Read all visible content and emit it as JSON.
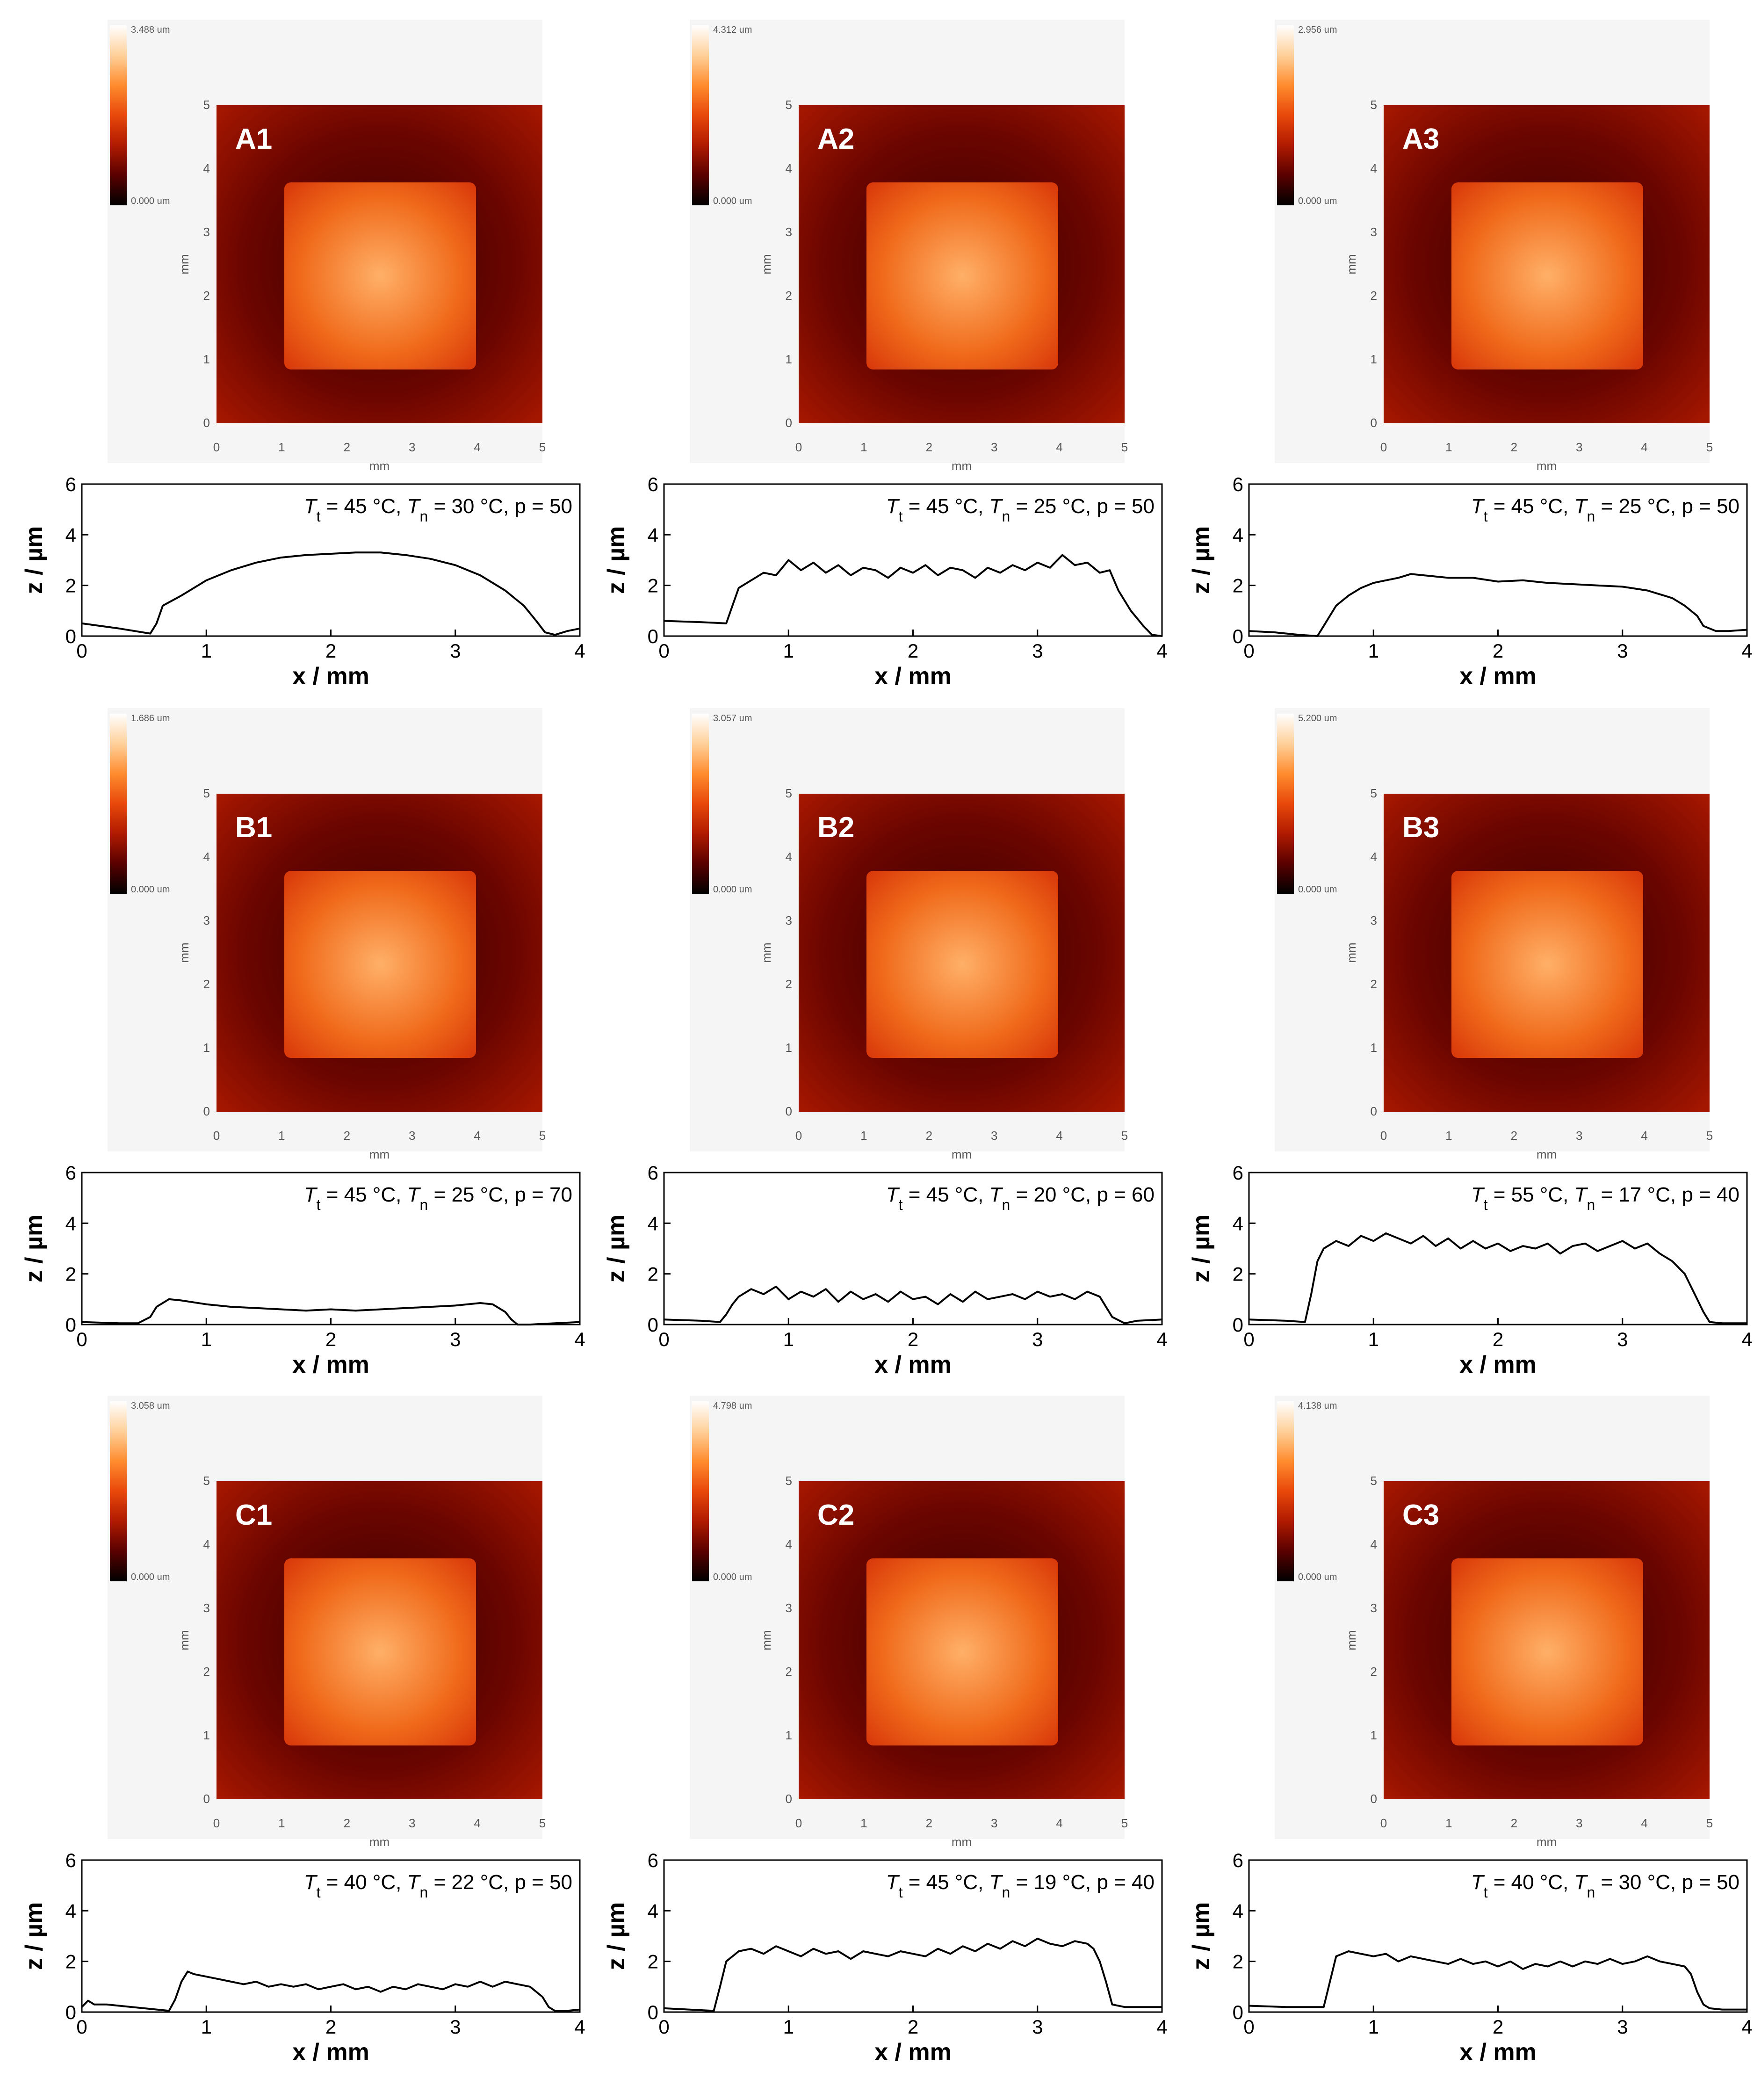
{
  "figure": {
    "map_axis_unit": "mm",
    "map_ticks": [
      "0",
      "1",
      "2",
      "3",
      "4",
      "5"
    ],
    "profile_xlabel": "x / mm",
    "profile_ylabel": "z / µm",
    "profile_xticks": [
      "0",
      "1",
      "2",
      "3",
      "4"
    ],
    "profile_yticks": [
      "0",
      "2",
      "4",
      "6"
    ],
    "colorbar_min": "0.000 um",
    "colormap": [
      "#000000",
      "#5a0000",
      "#b01a00",
      "#e8480a",
      "#ff8c2e",
      "#ffd09a",
      "#ffffff"
    ]
  },
  "panels": [
    {
      "id": "A1",
      "scale_max": "3.488 um",
      "caption_parts": [
        "T",
        "t",
        " = 45 °C, ",
        "T",
        "n",
        " = 30 °C, p = 50"
      ]
    },
    {
      "id": "A2",
      "scale_max": "4.312 um",
      "caption_parts": [
        "T",
        "t",
        " = 45 °C, ",
        "T",
        "n",
        " = 25 °C, p = 50"
      ]
    },
    {
      "id": "A3",
      "scale_max": "2.956 um",
      "caption_parts": [
        "T",
        "t",
        " = 45 °C, ",
        "T",
        "n",
        " = 25 °C, p = 50"
      ]
    },
    {
      "id": "B1",
      "scale_max": "1.686 um",
      "caption_parts": [
        "T",
        "t",
        " = 45 °C, ",
        "T",
        "n",
        " = 25 °C, p = 70"
      ]
    },
    {
      "id": "B2",
      "scale_max": "3.057 um",
      "caption_parts": [
        "T",
        "t",
        " = 45 °C, ",
        "T",
        "n",
        " = 20 °C, p = 60"
      ]
    },
    {
      "id": "B3",
      "scale_max": "5.200 um",
      "caption_parts": [
        "T",
        "t",
        " = 55 °C, ",
        "T",
        "n",
        " = 17 °C, p = 40"
      ]
    },
    {
      "id": "C1",
      "scale_max": "3.058 um",
      "caption_parts": [
        "T",
        "t",
        " = 40 °C, ",
        "T",
        "n",
        " = 22 °C, p = 50"
      ]
    },
    {
      "id": "C2",
      "scale_max": "4.798 um",
      "caption_parts": [
        "T",
        "t",
        " = 45 °C, ",
        "T",
        "n",
        " = 19 °C, p = 40"
      ]
    },
    {
      "id": "C3",
      "scale_max": "4.138 um",
      "caption_parts": [
        "T",
        "t",
        " = 40 °C, ",
        "T",
        "n",
        " = 30 °C, p = 50"
      ]
    }
  ],
  "chart_data": [
    {
      "type": "line",
      "panel": "A1",
      "xlabel": "x / mm",
      "ylabel": "z / µm",
      "xlim": [
        0,
        4
      ],
      "ylim": [
        0,
        6
      ],
      "grid": false,
      "x": [
        0,
        0.3,
        0.55,
        0.6,
        0.65,
        0.8,
        1.0,
        1.2,
        1.4,
        1.6,
        1.8,
        2.0,
        2.2,
        2.4,
        2.6,
        2.8,
        3.0,
        3.2,
        3.4,
        3.55,
        3.65,
        3.72,
        3.8,
        3.9,
        4.0
      ],
      "y": [
        0.5,
        0.3,
        0.1,
        0.5,
        1.2,
        1.6,
        2.2,
        2.6,
        2.9,
        3.1,
        3.2,
        3.25,
        3.3,
        3.3,
        3.2,
        3.05,
        2.8,
        2.4,
        1.8,
        1.2,
        0.6,
        0.15,
        0.05,
        0.2,
        0.3
      ]
    },
    {
      "type": "line",
      "panel": "A2",
      "xlabel": "x / mm",
      "ylabel": "z / µm",
      "xlim": [
        0,
        4
      ],
      "ylim": [
        0,
        6
      ],
      "grid": false,
      "x": [
        0,
        0.3,
        0.5,
        0.55,
        0.6,
        0.7,
        0.8,
        0.9,
        1.0,
        1.1,
        1.2,
        1.3,
        1.4,
        1.5,
        1.6,
        1.7,
        1.8,
        1.9,
        2.0,
        2.1,
        2.2,
        2.3,
        2.4,
        2.5,
        2.6,
        2.7,
        2.8,
        2.9,
        3.0,
        3.1,
        3.2,
        3.3,
        3.4,
        3.5,
        3.58,
        3.65,
        3.75,
        3.85,
        3.92,
        4.0
      ],
      "y": [
        0.6,
        0.55,
        0.5,
        1.2,
        1.9,
        2.2,
        2.5,
        2.4,
        3.0,
        2.6,
        2.9,
        2.5,
        2.8,
        2.4,
        2.7,
        2.6,
        2.3,
        2.7,
        2.5,
        2.8,
        2.4,
        2.7,
        2.6,
        2.3,
        2.7,
        2.5,
        2.8,
        2.6,
        2.9,
        2.7,
        3.2,
        2.8,
        2.9,
        2.5,
        2.6,
        1.8,
        1.0,
        0.4,
        0.05,
        0.0
      ]
    },
    {
      "type": "line",
      "panel": "A3",
      "xlabel": "x / mm",
      "ylabel": "z / µm",
      "xlim": [
        0,
        4
      ],
      "ylim": [
        0,
        6
      ],
      "grid": false,
      "x": [
        0,
        0.2,
        0.4,
        0.55,
        0.6,
        0.7,
        0.8,
        0.9,
        1.0,
        1.1,
        1.2,
        1.3,
        1.4,
        1.6,
        1.8,
        2.0,
        2.2,
        2.4,
        2.6,
        2.8,
        3.0,
        3.2,
        3.4,
        3.5,
        3.6,
        3.65,
        3.75,
        3.85,
        4.0
      ],
      "y": [
        0.2,
        0.15,
        0.05,
        0.0,
        0.4,
        1.2,
        1.6,
        1.9,
        2.1,
        2.2,
        2.3,
        2.45,
        2.4,
        2.3,
        2.3,
        2.15,
        2.2,
        2.1,
        2.05,
        2.0,
        1.95,
        1.8,
        1.5,
        1.2,
        0.8,
        0.4,
        0.2,
        0.2,
        0.25
      ]
    },
    {
      "type": "line",
      "panel": "B1",
      "xlabel": "x / mm",
      "ylabel": "z / µm",
      "xlim": [
        0,
        4
      ],
      "ylim": [
        0,
        6
      ],
      "grid": false,
      "x": [
        0,
        0.3,
        0.45,
        0.55,
        0.6,
        0.7,
        0.8,
        1.0,
        1.2,
        1.4,
        1.6,
        1.8,
        2.0,
        2.2,
        2.4,
        2.6,
        2.8,
        3.0,
        3.2,
        3.3,
        3.4,
        3.45,
        3.5,
        3.6,
        3.8,
        4.0
      ],
      "y": [
        0.1,
        0.05,
        0.05,
        0.3,
        0.7,
        1.0,
        0.95,
        0.8,
        0.7,
        0.65,
        0.6,
        0.55,
        0.6,
        0.55,
        0.6,
        0.65,
        0.7,
        0.75,
        0.85,
        0.8,
        0.5,
        0.2,
        0.0,
        0.0,
        0.05,
        0.1
      ]
    },
    {
      "type": "line",
      "panel": "B2",
      "xlabel": "x / mm",
      "ylabel": "z / µm",
      "xlim": [
        0,
        4
      ],
      "ylim": [
        0,
        6
      ],
      "grid": false,
      "x": [
        0,
        0.3,
        0.45,
        0.5,
        0.55,
        0.6,
        0.7,
        0.8,
        0.9,
        1.0,
        1.1,
        1.2,
        1.3,
        1.4,
        1.5,
        1.6,
        1.7,
        1.8,
        1.9,
        2.0,
        2.1,
        2.2,
        2.3,
        2.4,
        2.5,
        2.6,
        2.7,
        2.8,
        2.9,
        3.0,
        3.1,
        3.2,
        3.3,
        3.4,
        3.5,
        3.55,
        3.6,
        3.7,
        3.8,
        4.0
      ],
      "y": [
        0.2,
        0.15,
        0.1,
        0.4,
        0.8,
        1.1,
        1.4,
        1.2,
        1.5,
        1.0,
        1.3,
        1.1,
        1.4,
        0.9,
        1.3,
        1.0,
        1.2,
        0.9,
        1.3,
        1.0,
        1.1,
        0.8,
        1.2,
        0.9,
        1.3,
        1.0,
        1.1,
        1.2,
        1.0,
        1.3,
        1.1,
        1.2,
        1.0,
        1.3,
        1.1,
        0.7,
        0.3,
        0.05,
        0.15,
        0.2
      ]
    },
    {
      "type": "line",
      "panel": "B3",
      "xlabel": "x / mm",
      "ylabel": "z / µm",
      "xlim": [
        0,
        4
      ],
      "ylim": [
        0,
        6
      ],
      "grid": false,
      "x": [
        0,
        0.3,
        0.45,
        0.5,
        0.55,
        0.6,
        0.7,
        0.8,
        0.9,
        1.0,
        1.1,
        1.2,
        1.3,
        1.4,
        1.5,
        1.6,
        1.7,
        1.8,
        1.9,
        2.0,
        2.1,
        2.2,
        2.3,
        2.4,
        2.5,
        2.6,
        2.7,
        2.8,
        2.9,
        3.0,
        3.1,
        3.2,
        3.3,
        3.4,
        3.5,
        3.55,
        3.6,
        3.65,
        3.7,
        3.8,
        4.0
      ],
      "y": [
        0.2,
        0.15,
        0.1,
        1.2,
        2.5,
        3.0,
        3.3,
        3.1,
        3.5,
        3.3,
        3.6,
        3.4,
        3.2,
        3.5,
        3.1,
        3.4,
        3.0,
        3.3,
        3.0,
        3.2,
        2.9,
        3.1,
        3.0,
        3.2,
        2.8,
        3.1,
        3.2,
        2.9,
        3.1,
        3.3,
        3.0,
        3.2,
        2.8,
        2.5,
        2.0,
        1.5,
        1.0,
        0.5,
        0.1,
        0.05,
        0.05
      ]
    },
    {
      "type": "line",
      "panel": "C1",
      "xlabel": "x / mm",
      "ylabel": "z / µm",
      "xlim": [
        0,
        4
      ],
      "ylim": [
        0,
        6
      ],
      "grid": false,
      "x": [
        0,
        0.05,
        0.1,
        0.2,
        0.3,
        0.5,
        0.7,
        0.75,
        0.8,
        0.85,
        0.9,
        1.0,
        1.1,
        1.2,
        1.3,
        1.4,
        1.5,
        1.6,
        1.7,
        1.8,
        1.9,
        2.0,
        2.1,
        2.2,
        2.3,
        2.4,
        2.5,
        2.6,
        2.7,
        2.8,
        2.9,
        3.0,
        3.1,
        3.2,
        3.3,
        3.4,
        3.5,
        3.6,
        3.7,
        3.75,
        3.8,
        3.9,
        4.0
      ],
      "y": [
        0.2,
        0.45,
        0.3,
        0.3,
        0.25,
        0.15,
        0.05,
        0.5,
        1.2,
        1.6,
        1.5,
        1.4,
        1.3,
        1.2,
        1.1,
        1.2,
        1.0,
        1.1,
        1.0,
        1.1,
        0.9,
        1.0,
        1.1,
        0.9,
        1.0,
        0.8,
        1.0,
        0.9,
        1.1,
        1.0,
        0.9,
        1.1,
        1.0,
        1.2,
        1.0,
        1.2,
        1.1,
        1.0,
        0.6,
        0.2,
        0.05,
        0.05,
        0.1
      ]
    },
    {
      "type": "line",
      "panel": "C2",
      "xlabel": "x / mm",
      "ylabel": "z / µm",
      "xlim": [
        0,
        4
      ],
      "ylim": [
        0,
        6
      ],
      "grid": false,
      "x": [
        0,
        0.2,
        0.4,
        0.45,
        0.5,
        0.6,
        0.7,
        0.8,
        0.9,
        1.0,
        1.1,
        1.2,
        1.3,
        1.4,
        1.5,
        1.6,
        1.7,
        1.8,
        1.9,
        2.0,
        2.1,
        2.2,
        2.3,
        2.4,
        2.5,
        2.6,
        2.7,
        2.8,
        2.9,
        3.0,
        3.1,
        3.2,
        3.3,
        3.4,
        3.45,
        3.5,
        3.55,
        3.6,
        3.7,
        4.0
      ],
      "y": [
        0.15,
        0.1,
        0.05,
        1.0,
        2.0,
        2.4,
        2.5,
        2.3,
        2.6,
        2.4,
        2.2,
        2.5,
        2.3,
        2.4,
        2.1,
        2.4,
        2.3,
        2.2,
        2.4,
        2.3,
        2.2,
        2.5,
        2.3,
        2.6,
        2.4,
        2.7,
        2.5,
        2.8,
        2.6,
        2.9,
        2.7,
        2.6,
        2.8,
        2.7,
        2.5,
        2.0,
        1.2,
        0.3,
        0.2,
        0.2
      ]
    },
    {
      "type": "line",
      "panel": "C3",
      "xlabel": "x / mm",
      "ylabel": "z / µm",
      "xlim": [
        0,
        4
      ],
      "ylim": [
        0,
        6
      ],
      "grid": false,
      "x": [
        0,
        0.3,
        0.6,
        0.65,
        0.7,
        0.8,
        0.9,
        1.0,
        1.1,
        1.2,
        1.3,
        1.4,
        1.5,
        1.6,
        1.7,
        1.8,
        1.9,
        2.0,
        2.1,
        2.2,
        2.3,
        2.4,
        2.5,
        2.6,
        2.7,
        2.8,
        2.9,
        3.0,
        3.1,
        3.2,
        3.3,
        3.4,
        3.5,
        3.55,
        3.6,
        3.65,
        3.7,
        3.8,
        4.0
      ],
      "y": [
        0.25,
        0.2,
        0.2,
        1.2,
        2.2,
        2.4,
        2.3,
        2.2,
        2.3,
        2.0,
        2.2,
        2.1,
        2.0,
        1.9,
        2.1,
        1.9,
        2.0,
        1.8,
        2.0,
        1.7,
        1.9,
        1.8,
        2.0,
        1.8,
        2.0,
        1.9,
        2.1,
        1.9,
        2.0,
        2.2,
        2.0,
        1.9,
        1.8,
        1.5,
        0.8,
        0.3,
        0.15,
        0.1,
        0.1
      ]
    }
  ]
}
